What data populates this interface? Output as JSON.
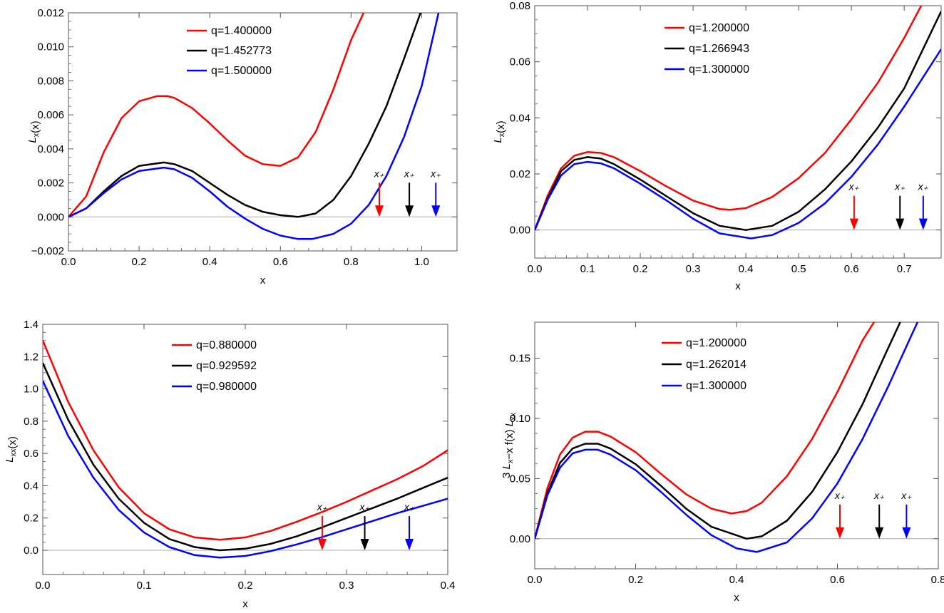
{
  "chart_data": [
    {
      "type": "line",
      "xlabel": "x",
      "ylabel": "L_x(x)",
      "xlim": [
        0.0,
        1.1
      ],
      "ylim": [
        -0.002,
        0.012
      ],
      "xticks": [
        "0.0",
        "0.2",
        "0.4",
        "0.6",
        "0.8",
        "1.0"
      ],
      "yticks": [
        "−0.002",
        "0.000",
        "0.002",
        "0.004",
        "0.006",
        "0.008",
        "0.010",
        "0.012"
      ],
      "legend_position": "top-center",
      "series": [
        {
          "name": "q=1.400000",
          "color": "#ff0000",
          "x": [
            0.0,
            0.05,
            0.1,
            0.15,
            0.2,
            0.25,
            0.28,
            0.3,
            0.35,
            0.4,
            0.45,
            0.5,
            0.55,
            0.6,
            0.65,
            0.7,
            0.75,
            0.8,
            0.84
          ],
          "y": [
            0.0,
            0.0012,
            0.0038,
            0.0058,
            0.0068,
            0.0071,
            0.0071,
            0.007,
            0.0064,
            0.0055,
            0.0045,
            0.0036,
            0.0031,
            0.003,
            0.0035,
            0.005,
            0.0075,
            0.0104,
            0.0122
          ]
        },
        {
          "name": "q=1.452773",
          "color": "#000000",
          "x": [
            0.0,
            0.05,
            0.1,
            0.15,
            0.2,
            0.27,
            0.3,
            0.35,
            0.4,
            0.45,
            0.5,
            0.55,
            0.6,
            0.65,
            0.7,
            0.75,
            0.8,
            0.85,
            0.9,
            0.95,
            1.0
          ],
          "y": [
            0.0,
            0.0005,
            0.0015,
            0.0024,
            0.003,
            0.0032,
            0.0031,
            0.0027,
            0.002,
            0.0013,
            0.0007,
            0.0003,
            0.0001,
            0.0,
            0.0002,
            0.001,
            0.0024,
            0.0043,
            0.0065,
            0.0093,
            0.0122
          ]
        },
        {
          "name": "q=1.500000",
          "color": "#0000ff",
          "x": [
            0.0,
            0.05,
            0.1,
            0.15,
            0.2,
            0.27,
            0.3,
            0.35,
            0.4,
            0.45,
            0.5,
            0.55,
            0.6,
            0.65,
            0.69,
            0.75,
            0.8,
            0.85,
            0.9,
            0.95,
            1.0,
            1.05
          ],
          "y": [
            0.0,
            0.0005,
            0.0014,
            0.0022,
            0.0027,
            0.0029,
            0.0028,
            0.0023,
            0.0015,
            0.0006,
            -0.0001,
            -0.0007,
            -0.0011,
            -0.0013,
            -0.0013,
            -0.001,
            -0.0004,
            0.0007,
            0.0024,
            0.0047,
            0.0077,
            0.0122
          ]
        }
      ],
      "markers": [
        {
          "label": "x₊",
          "x": 0.88,
          "color": "#ff0000"
        },
        {
          "label": "x₊",
          "x": 0.965,
          "color": "#000000"
        },
        {
          "label": "x₊",
          "x": 1.04,
          "color": "#0000ff"
        }
      ]
    },
    {
      "type": "line",
      "xlabel": "x",
      "ylabel": "L_x(x)",
      "xlim": [
        0.0,
        0.77
      ],
      "ylim": [
        -0.01,
        0.08
      ],
      "xticks": [
        "0.0",
        "0.1",
        "0.2",
        "0.3",
        "0.4",
        "0.5",
        "0.6",
        "0.7"
      ],
      "yticks": [
        "0.00",
        "0.02",
        "0.04",
        "0.06",
        "0.08"
      ],
      "legend_position": "top-center",
      "series": [
        {
          "name": "q=1.200000",
          "color": "#ff0000",
          "x": [
            0.0,
            0.025,
            0.05,
            0.075,
            0.1,
            0.125,
            0.15,
            0.2,
            0.25,
            0.3,
            0.35,
            0.37,
            0.4,
            0.45,
            0.5,
            0.55,
            0.6,
            0.65,
            0.7,
            0.735
          ],
          "y": [
            0.0,
            0.0125,
            0.022,
            0.0265,
            0.0278,
            0.0275,
            0.026,
            0.021,
            0.0155,
            0.0105,
            0.0075,
            0.0072,
            0.0078,
            0.0118,
            0.0185,
            0.0275,
            0.0395,
            0.0525,
            0.0685,
            0.081
          ]
        },
        {
          "name": "q=1.266943",
          "color": "#000000",
          "x": [
            0.0,
            0.025,
            0.05,
            0.075,
            0.1,
            0.125,
            0.15,
            0.2,
            0.25,
            0.3,
            0.35,
            0.4,
            0.45,
            0.5,
            0.55,
            0.6,
            0.65,
            0.7,
            0.77
          ],
          "y": [
            0.0,
            0.0115,
            0.021,
            0.025,
            0.026,
            0.0255,
            0.0235,
            0.018,
            0.012,
            0.006,
            0.0015,
            0.0,
            0.0015,
            0.0065,
            0.0145,
            0.0245,
            0.0365,
            0.0505,
            0.078
          ]
        },
        {
          "name": "q=1.300000",
          "color": "#0000ff",
          "x": [
            0.0,
            0.025,
            0.05,
            0.075,
            0.1,
            0.125,
            0.15,
            0.2,
            0.25,
            0.3,
            0.35,
            0.41,
            0.45,
            0.5,
            0.55,
            0.6,
            0.65,
            0.7,
            0.77
          ],
          "y": [
            0.0,
            0.011,
            0.0195,
            0.0235,
            0.0243,
            0.0238,
            0.022,
            0.0165,
            0.0105,
            0.004,
            -0.0012,
            -0.003,
            -0.0018,
            0.0025,
            0.0095,
            0.019,
            0.0305,
            0.044,
            0.0645
          ]
        }
      ],
      "markers": [
        {
          "label": "x₊",
          "x": 0.605,
          "color": "#ff0000"
        },
        {
          "label": "x₊",
          "x": 0.692,
          "color": "#000000"
        },
        {
          "label": "x₊",
          "x": 0.736,
          "color": "#0000ff"
        }
      ]
    },
    {
      "type": "line",
      "xlabel": "x",
      "ylabel": "L_xx(x)",
      "xlim": [
        0.0,
        0.4
      ],
      "ylim": [
        -0.15,
        1.4
      ],
      "xticks": [
        "0.0",
        "0.1",
        "0.2",
        "0.3",
        "0.4"
      ],
      "yticks": [
        "0.0",
        "0.2",
        "0.4",
        "0.6",
        "0.8",
        "1.0",
        "1.2",
        "1.4"
      ],
      "legend_position": "top-center",
      "series": [
        {
          "name": "q=0.880000",
          "color": "#ff0000",
          "x": [
            0.0,
            0.025,
            0.05,
            0.075,
            0.1,
            0.125,
            0.15,
            0.175,
            0.2,
            0.225,
            0.25,
            0.275,
            0.3,
            0.325,
            0.35,
            0.375,
            0.4
          ],
          "y": [
            1.3,
            0.92,
            0.62,
            0.39,
            0.23,
            0.13,
            0.08,
            0.065,
            0.08,
            0.12,
            0.175,
            0.235,
            0.3,
            0.37,
            0.44,
            0.52,
            0.62
          ]
        },
        {
          "name": "q=0.929592",
          "color": "#000000",
          "x": [
            0.0,
            0.025,
            0.05,
            0.075,
            0.1,
            0.125,
            0.15,
            0.175,
            0.2,
            0.225,
            0.25,
            0.275,
            0.3,
            0.325,
            0.35,
            0.375,
            0.4
          ],
          "y": [
            1.16,
            0.81,
            0.53,
            0.32,
            0.17,
            0.07,
            0.02,
            0.0,
            0.01,
            0.04,
            0.085,
            0.14,
            0.2,
            0.26,
            0.32,
            0.385,
            0.45
          ]
        },
        {
          "name": "q=0.980000",
          "color": "#0000ff",
          "x": [
            0.0,
            0.025,
            0.05,
            0.075,
            0.1,
            0.125,
            0.15,
            0.175,
            0.2,
            0.225,
            0.25,
            0.275,
            0.3,
            0.325,
            0.35,
            0.375,
            0.4
          ],
          "y": [
            1.05,
            0.71,
            0.45,
            0.25,
            0.11,
            0.02,
            -0.03,
            -0.045,
            -0.035,
            -0.005,
            0.035,
            0.08,
            0.13,
            0.18,
            0.23,
            0.275,
            0.32
          ]
        }
      ],
      "markers": [
        {
          "label": "x₊",
          "x": 0.276,
          "color": "#ff0000"
        },
        {
          "label": "x₊",
          "x": 0.318,
          "color": "#000000"
        },
        {
          "label": "x₊",
          "x": 0.362,
          "color": "#0000ff"
        }
      ]
    },
    {
      "type": "line",
      "xlabel": "x",
      "ylabel": "3 L_x−x f(x) L_xx",
      "xlim": [
        0.0,
        0.8
      ],
      "ylim": [
        -0.025,
        0.18
      ],
      "xticks": [
        "0.0",
        "0.2",
        "0.4",
        "0.6",
        "0.8"
      ],
      "yticks": [
        "0.00",
        "0.05",
        "0.10",
        "0.15"
      ],
      "legend_position": "top-center",
      "series": [
        {
          "name": "q=1.200000",
          "color": "#ff0000",
          "x": [
            0.0,
            0.025,
            0.05,
            0.075,
            0.1,
            0.125,
            0.15,
            0.2,
            0.25,
            0.3,
            0.35,
            0.39,
            0.42,
            0.45,
            0.5,
            0.55,
            0.6,
            0.65,
            0.68
          ],
          "y": [
            0.0,
            0.042,
            0.07,
            0.084,
            0.089,
            0.089,
            0.085,
            0.072,
            0.054,
            0.037,
            0.025,
            0.021,
            0.023,
            0.03,
            0.052,
            0.083,
            0.122,
            0.165,
            0.185
          ]
        },
        {
          "name": "q=1.262014",
          "color": "#000000",
          "x": [
            0.0,
            0.025,
            0.05,
            0.075,
            0.1,
            0.125,
            0.15,
            0.2,
            0.25,
            0.3,
            0.35,
            0.42,
            0.45,
            0.5,
            0.55,
            0.6,
            0.65,
            0.7,
            0.73
          ],
          "y": [
            0.0,
            0.038,
            0.063,
            0.075,
            0.079,
            0.079,
            0.075,
            0.062,
            0.044,
            0.025,
            0.01,
            0.0,
            0.002,
            0.015,
            0.039,
            0.072,
            0.112,
            0.158,
            0.185
          ]
        },
        {
          "name": "q=1.300000",
          "color": "#0000ff",
          "x": [
            0.0,
            0.025,
            0.05,
            0.075,
            0.1,
            0.125,
            0.15,
            0.2,
            0.25,
            0.3,
            0.35,
            0.4,
            0.44,
            0.5,
            0.55,
            0.6,
            0.65,
            0.7,
            0.75,
            0.77
          ],
          "y": [
            0.0,
            0.036,
            0.059,
            0.071,
            0.074,
            0.074,
            0.07,
            0.057,
            0.039,
            0.02,
            0.003,
            -0.008,
            -0.011,
            -0.003,
            0.017,
            0.046,
            0.083,
            0.126,
            0.172,
            0.19
          ]
        }
      ],
      "markers": [
        {
          "label": "x₊",
          "x": 0.605,
          "color": "#ff0000"
        },
        {
          "label": "x₊",
          "x": 0.683,
          "color": "#000000"
        },
        {
          "label": "x₊",
          "x": 0.737,
          "color": "#0000ff"
        }
      ]
    }
  ]
}
